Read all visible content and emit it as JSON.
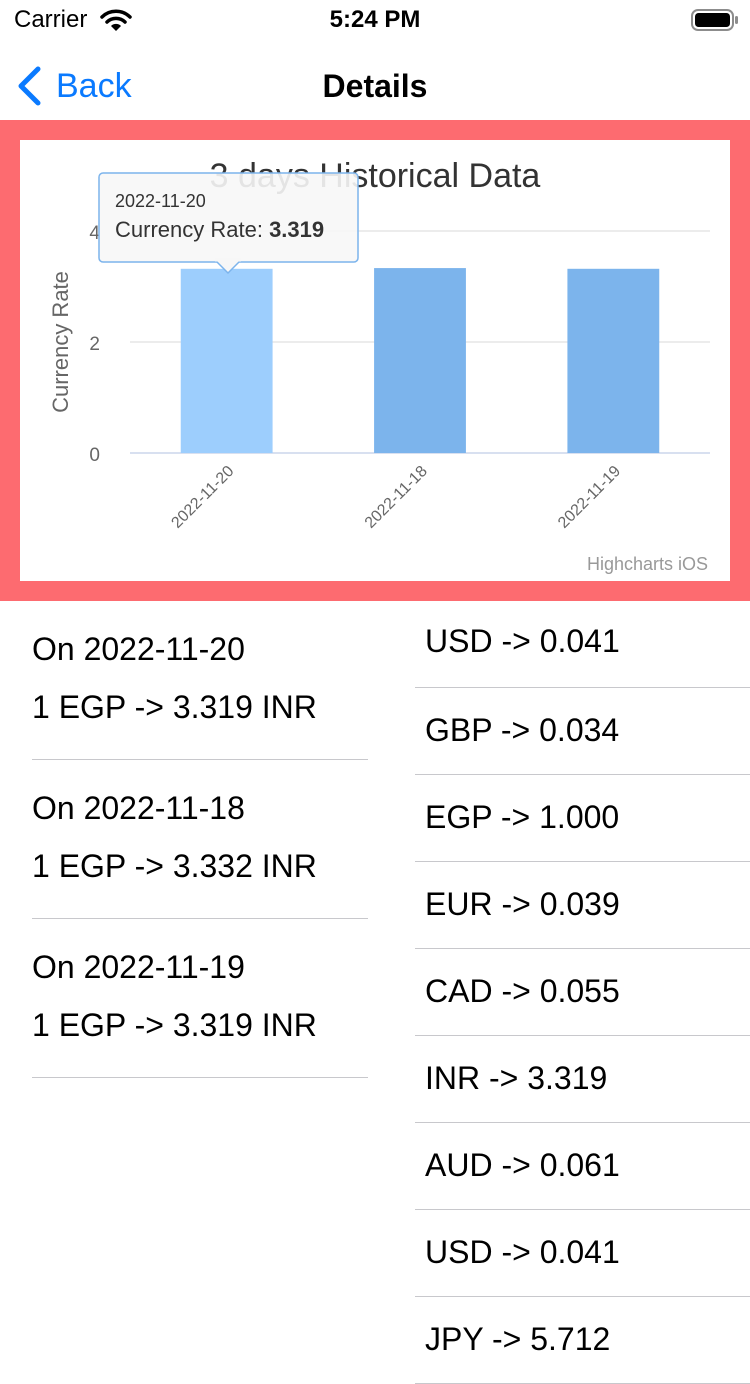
{
  "status_bar": {
    "carrier": "Carrier",
    "time": "5:24 PM"
  },
  "nav": {
    "back_label": "Back",
    "title": "Details"
  },
  "highlight_color": "#fd6b70",
  "chart_data": {
    "type": "bar",
    "title": "3 days Historical Data",
    "ylabel": "Currency Rate",
    "xlabel": "",
    "categories": [
      "2022-11-20",
      "2022-11-18",
      "2022-11-19"
    ],
    "series": [
      {
        "name": "Currency Rate",
        "values": [
          3.319,
          3.332,
          3.319
        ]
      }
    ],
    "ylim": [
      0,
      4
    ],
    "yticks": [
      0,
      2,
      4
    ],
    "grid": true,
    "legend": "none",
    "colors": {
      "bar": "#7cb4ec",
      "bar_hover": "#9dcefd",
      "grid": "#e6e6e6",
      "axis": "#ccd6eb"
    },
    "highlighted_index": 0,
    "tooltip": {
      "date": "2022-11-20",
      "label": "Currency Rate: ",
      "value": "3.319"
    },
    "credits": "Highcharts iOS"
  },
  "history": [
    {
      "date": "On 2022-11-20",
      "rate": "1 EGP -> 3.319 INR"
    },
    {
      "date": "On 2022-11-18",
      "rate": "1 EGP -> 3.332 INR"
    },
    {
      "date": "On 2022-11-19",
      "rate": "1 EGP -> 3.319 INR"
    }
  ],
  "rates": [
    {
      "text": "USD -> 0.041"
    },
    {
      "text": "GBP -> 0.034"
    },
    {
      "text": "EGP -> 1.000"
    },
    {
      "text": "EUR -> 0.039"
    },
    {
      "text": "CAD -> 0.055"
    },
    {
      "text": "INR -> 3.319"
    },
    {
      "text": "AUD -> 0.061"
    },
    {
      "text": "USD -> 0.041"
    },
    {
      "text": "JPY -> 5.712"
    }
  ]
}
